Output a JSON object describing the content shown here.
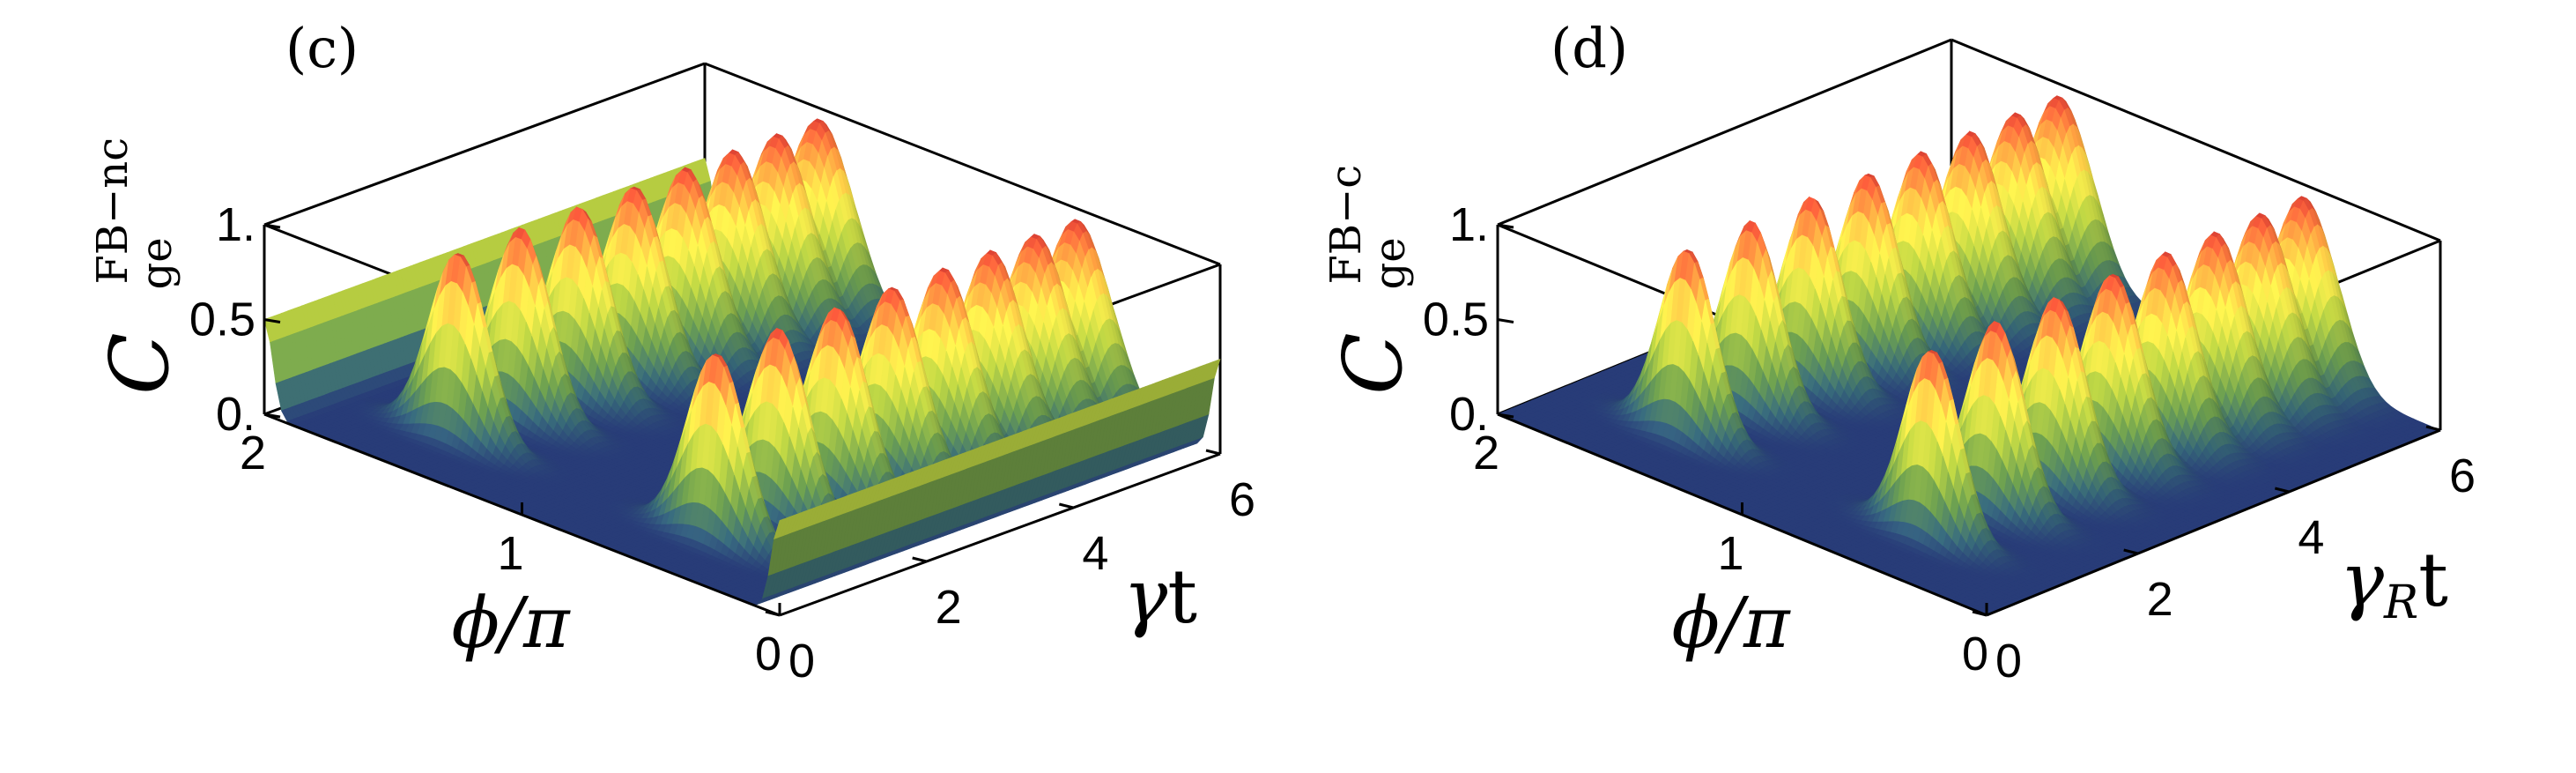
{
  "chart_data": [
    {
      "type": "surface",
      "panel_label": "(c)",
      "zlabel": {
        "base": "C",
        "sup": "FB−nc",
        "sub": "ge"
      },
      "xlabel": "ϕ/π",
      "ylabel": {
        "base": "γ",
        "sub": "",
        "suffix": "t"
      },
      "x_ticks": [
        "0",
        "1",
        "2"
      ],
      "y_ticks": [
        "0",
        "2",
        "4",
        "6"
      ],
      "z_ticks": [
        "0.",
        "0.5",
        "1."
      ],
      "xlim": [
        0,
        2
      ],
      "ylim": [
        0,
        6
      ],
      "zlim": [
        0,
        1
      ],
      "series": [
        {
          "x": 0.5,
          "peak_times": [
            0.9,
            1.75,
            2.55,
            3.3,
            4.0,
            4.65,
            5.25,
            5.8
          ],
          "peak_heights": [
            1.0,
            1.0,
            1.0,
            1.0,
            1.0,
            1.0,
            1.0,
            1.0
          ]
        },
        {
          "x": 1.5,
          "peak_times": [
            0.9,
            1.75,
            2.55,
            3.3,
            4.0,
            4.65,
            5.25,
            5.8
          ],
          "peak_heights": [
            1.0,
            1.0,
            1.0,
            1.0,
            1.0,
            1.0,
            1.0,
            1.0
          ]
        }
      ],
      "edge_plateau": 0.5
    },
    {
      "type": "surface",
      "panel_label": "(d)",
      "zlabel": {
        "base": "C",
        "sup": "FB−c",
        "sub": "ge"
      },
      "xlabel": "ϕ/π",
      "ylabel": {
        "base": "γ",
        "sub": "R",
        "suffix": "t"
      },
      "x_ticks": [
        "0",
        "1",
        "2"
      ],
      "y_ticks": [
        "0",
        "2",
        "4",
        "6"
      ],
      "z_ticks": [
        "0.",
        "0.5",
        "1."
      ],
      "xlim": [
        0,
        2
      ],
      "ylim": [
        0,
        6
      ],
      "zlim": [
        0,
        1
      ],
      "series": [
        {
          "x": 0.5,
          "peak_times": [
            0.9,
            1.75,
            2.55,
            3.3,
            4.0,
            4.65,
            5.25,
            5.8
          ],
          "peak_heights": [
            1.0,
            1.0,
            1.0,
            1.0,
            1.0,
            1.0,
            1.0,
            1.0
          ]
        },
        {
          "x": 1.5,
          "peak_times": [
            0.9,
            1.75,
            2.55,
            3.3,
            4.0,
            4.65,
            5.25,
            5.8
          ],
          "peak_heights": [
            1.0,
            1.0,
            1.0,
            1.0,
            1.0,
            1.0,
            1.0,
            1.0
          ]
        }
      ],
      "edge_plateau": 0.0
    }
  ]
}
